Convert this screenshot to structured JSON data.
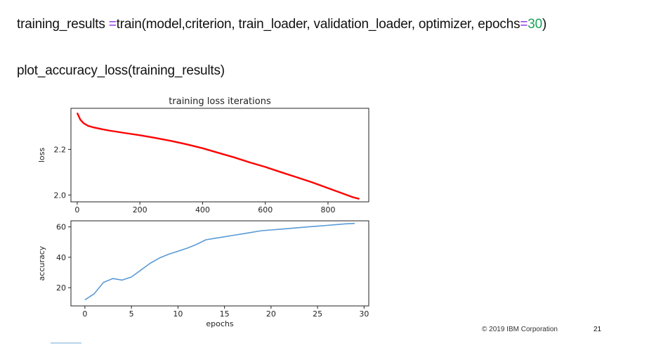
{
  "code": {
    "line1": {
      "var": "training_results ",
      "op": "=",
      "call": "train(model,criterion, train_loader, validation_loader, optimizer, epochs",
      "op2": "=",
      "epochs": "30",
      "close": ")"
    },
    "line2": "plot_accuracy_loss(training_results)"
  },
  "footer": {
    "copyright": "© 2019 IBM Corporation",
    "slide_number": "21"
  },
  "colors": {
    "operator": "#8a2be2",
    "number": "#1aa35a",
    "loss_line": "#ff0000",
    "accuracy_line": "#5b9bd5"
  },
  "chart_data": [
    {
      "type": "line",
      "title": "training loss iterations",
      "xlabel": "",
      "ylabel": "loss",
      "xlim": [
        -20,
        930
      ],
      "ylim": [
        1.97,
        2.38
      ],
      "xticks": [
        0,
        200,
        400,
        600,
        800
      ],
      "yticks": [
        2.0,
        2.2
      ],
      "ytick_labels": [
        "2.0",
        "2.2"
      ],
      "series": [
        {
          "color": "#ff0000",
          "x": [
            0,
            10,
            20,
            35,
            50,
            80,
            100,
            150,
            200,
            250,
            300,
            350,
            400,
            450,
            500,
            550,
            600,
            650,
            700,
            750,
            800,
            850,
            880,
            900
          ],
          "y": [
            2.36,
            2.33,
            2.315,
            2.303,
            2.297,
            2.288,
            2.283,
            2.272,
            2.262,
            2.25,
            2.237,
            2.222,
            2.205,
            2.185,
            2.165,
            2.143,
            2.123,
            2.1,
            2.078,
            2.055,
            2.03,
            2.005,
            1.99,
            1.983
          ]
        }
      ]
    },
    {
      "type": "line",
      "title": "",
      "xlabel": "epochs",
      "ylabel": "accuracy",
      "xlim": [
        -1.5,
        30.5
      ],
      "ylim": [
        8,
        64
      ],
      "xticks": [
        0,
        5,
        10,
        15,
        20,
        25,
        30
      ],
      "yticks": [
        20,
        40,
        60
      ],
      "series": [
        {
          "color": "#5b9bd5",
          "x": [
            0,
            1,
            2,
            3,
            4,
            5,
            6,
            7,
            8,
            9,
            10,
            11,
            12,
            13,
            14,
            15,
            16,
            17,
            18,
            19,
            20,
            21,
            22,
            23,
            24,
            25,
            26,
            27,
            28,
            29
          ],
          "y": [
            12,
            16,
            23.5,
            26,
            25,
            27,
            31.5,
            36,
            39.5,
            42,
            44,
            46,
            48.5,
            51.5,
            52.5,
            53.5,
            54.5,
            55.5,
            56.5,
            57.5,
            58,
            58.5,
            59,
            59.5,
            60,
            60.5,
            61,
            61.5,
            62,
            62.3
          ]
        }
      ]
    }
  ]
}
